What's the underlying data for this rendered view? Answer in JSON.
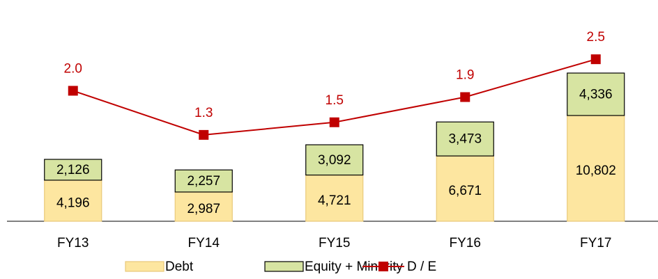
{
  "chart_data": {
    "type": "bar",
    "stacked": true,
    "categories": [
      "FY13",
      "FY14",
      "FY15",
      "FY16",
      "FY17"
    ],
    "series": [
      {
        "name": "Debt",
        "color": "#fde6a0",
        "values": [
          4196,
          2987,
          4721,
          6671,
          10802
        ],
        "value_labels": [
          "4,196",
          "2,987",
          "4,721",
          "6,671",
          "10,802"
        ]
      },
      {
        "name": "Equity + Minority",
        "color": "#d7e4a2",
        "values": [
          2126,
          2257,
          3092,
          3473,
          4336
        ],
        "value_labels": [
          "2,126",
          "2,257",
          "3,092",
          "3,473",
          "4,336"
        ]
      },
      {
        "name": "D / E",
        "color": "#c00000",
        "type": "line",
        "axis": "y2",
        "values": [
          2.0,
          1.3,
          1.5,
          1.9,
          2.5
        ],
        "value_labels": [
          "2.0",
          "1.3",
          "1.5",
          "1.9",
          "2.5"
        ]
      }
    ],
    "ylim": [
      0,
      22600
    ],
    "y2lim": [
      -0.07,
      3.44
    ],
    "legend": "bottom"
  }
}
